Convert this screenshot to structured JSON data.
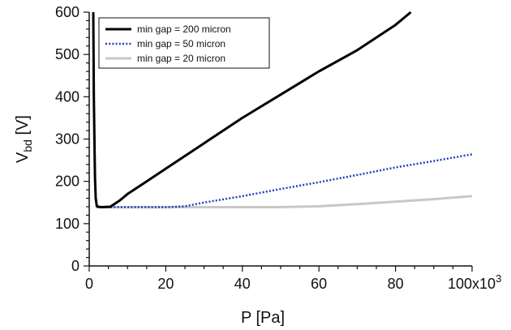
{
  "chart_data": {
    "type": "line",
    "title": "",
    "xlabel": "P [Pa]",
    "ylabel": {
      "base": "V",
      "subscript": "bd",
      "suffix": " [V]"
    },
    "xlim": [
      0,
      100000
    ],
    "ylim": [
      0,
      600
    ],
    "x_ticks": [
      {
        "value": 0,
        "label": "0"
      },
      {
        "value": 20000,
        "label": "20"
      },
      {
        "value": 40000,
        "label": "40"
      },
      {
        "value": 60000,
        "label": "60"
      },
      {
        "value": 80000,
        "label": "80"
      },
      {
        "value": 100000,
        "label": "100x10",
        "superscript": "3"
      }
    ],
    "y_ticks": [
      {
        "value": 0,
        "label": "0"
      },
      {
        "value": 100,
        "label": "100"
      },
      {
        "value": 200,
        "label": "200"
      },
      {
        "value": 300,
        "label": "300"
      },
      {
        "value": 400,
        "label": "400"
      },
      {
        "value": 500,
        "label": "500"
      },
      {
        "value": 600,
        "label": "600"
      }
    ],
    "grid": false,
    "legend_position": "top-left",
    "series": [
      {
        "name": "min gap = 200 micron",
        "color": "#000000",
        "style": "solid",
        "points": [
          [
            1050,
            600
          ],
          [
            1200,
            400
          ],
          [
            1350,
            300
          ],
          [
            1500,
            210
          ],
          [
            1700,
            160
          ],
          [
            2000,
            141
          ],
          [
            3000,
            139
          ],
          [
            5500,
            140
          ],
          [
            8000,
            155
          ],
          [
            10000,
            170
          ],
          [
            15000,
            200
          ],
          [
            20000,
            230
          ],
          [
            30000,
            290
          ],
          [
            40000,
            350
          ],
          [
            50000,
            405
          ],
          [
            60000,
            460
          ],
          [
            70000,
            510
          ],
          [
            80000,
            570
          ],
          [
            84000,
            600
          ]
        ]
      },
      {
        "name": "min gap = 50 micron",
        "color": "#1f3fbf",
        "style": "dotted",
        "points": [
          [
            2000,
            139
          ],
          [
            20000,
            139
          ],
          [
            25000,
            141
          ],
          [
            30000,
            150
          ],
          [
            40000,
            165
          ],
          [
            50000,
            182
          ],
          [
            60000,
            198
          ],
          [
            70000,
            215
          ],
          [
            80000,
            233
          ],
          [
            90000,
            248
          ],
          [
            100000,
            264
          ]
        ]
      },
      {
        "name": "min gap = 20 micron",
        "color": "#c8c8c8",
        "style": "solid",
        "points": [
          [
            2000,
            139
          ],
          [
            50000,
            139
          ],
          [
            60000,
            141
          ],
          [
            70000,
            146
          ],
          [
            80000,
            152
          ],
          [
            90000,
            158
          ],
          [
            100000,
            165
          ]
        ]
      }
    ]
  }
}
